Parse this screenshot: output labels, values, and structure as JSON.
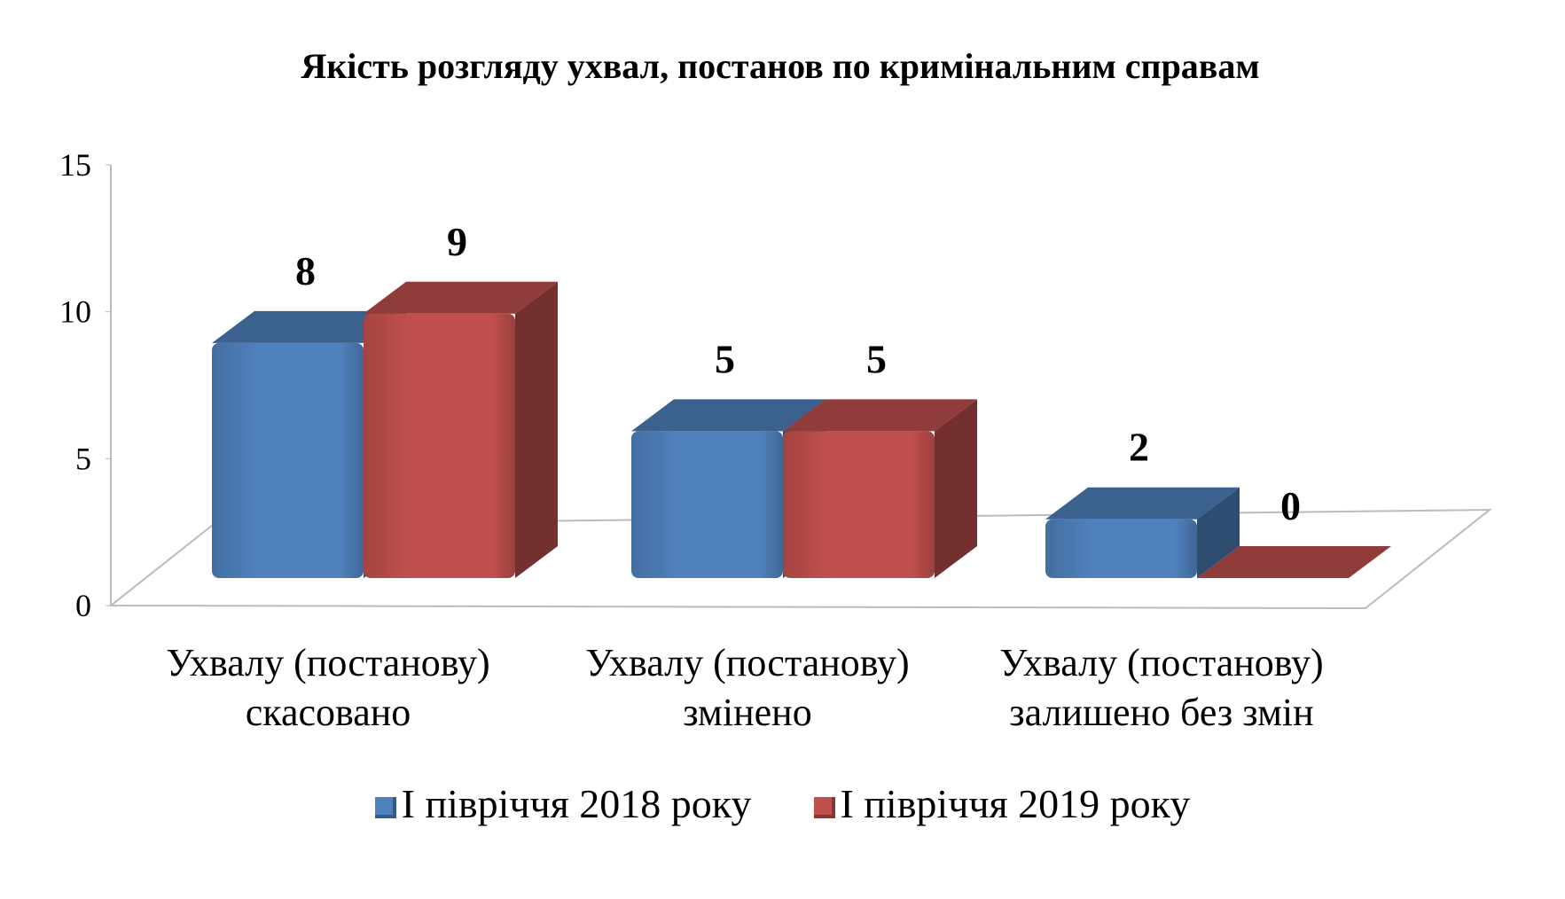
{
  "chart_data": {
    "type": "bar3d",
    "title": "Якість розгляду ухвал, постанов по кримінальним справам",
    "categories": [
      "Ухвалу (постанову) скасовано",
      "Ухвалу (постанову) змінено",
      "Ухвалу (постанову) залишено без змін"
    ],
    "series": [
      {
        "name": "І півріччя 2018 року",
        "color": "#4f81bd",
        "values": [
          8,
          5,
          2
        ]
      },
      {
        "name": "І півріччя 2019 року",
        "color": "#c0504d",
        "values": [
          9,
          5,
          0
        ]
      }
    ],
    "ylim": [
      0,
      15
    ],
    "yticks": [
      0,
      5,
      10,
      15
    ],
    "legend": "bottom"
  }
}
